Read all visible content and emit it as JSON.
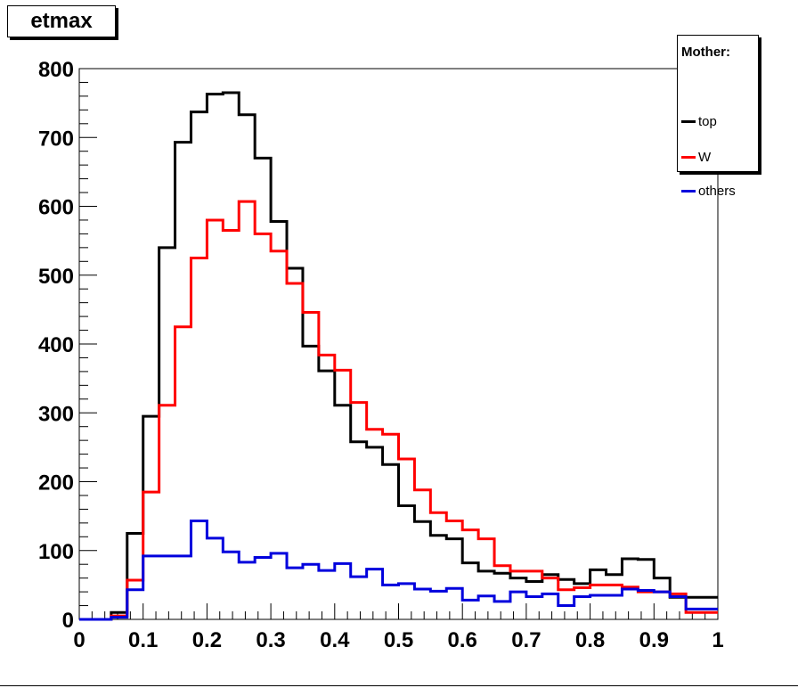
{
  "chart_data": {
    "type": "histogram",
    "title": "etmax",
    "xlabel": "",
    "ylabel": "",
    "xlim": [
      0,
      1
    ],
    "ylim": [
      0,
      800
    ],
    "bin_width": 0.025,
    "x_ticks": [
      0,
      0.1,
      0.2,
      0.3,
      0.4,
      0.5,
      0.6,
      0.7,
      0.8,
      0.9,
      1
    ],
    "x_tick_labels": [
      "0",
      "0.1",
      "0.2",
      "0.3",
      "0.4",
      "0.5",
      "0.6",
      "0.7",
      "0.8",
      "0.9",
      "1"
    ],
    "y_ticks": [
      0,
      100,
      200,
      300,
      400,
      500,
      600,
      700,
      800
    ],
    "y_tick_labels": [
      "0",
      "100",
      "200",
      "300",
      "400",
      "500",
      "600",
      "700",
      "800"
    ],
    "legend": {
      "header": "Mother:",
      "placement": "top-right"
    },
    "series": [
      {
        "name": "top",
        "color": "#000000",
        "values": [
          0,
          0,
          10,
          125,
          295,
          540,
          693,
          737,
          763,
          765,
          733,
          670,
          578,
          510,
          397,
          361,
          311,
          258,
          250,
          225,
          165,
          142,
          122,
          117,
          82,
          70,
          67,
          60,
          55,
          65,
          58,
          52,
          72,
          65,
          88,
          87,
          60,
          32,
          32,
          32
        ]
      },
      {
        "name": "W",
        "color": "#ff0000",
        "values": [
          0,
          0,
          5,
          57,
          185,
          311,
          425,
          525,
          580,
          565,
          607,
          560,
          535,
          488,
          446,
          384,
          362,
          315,
          276,
          269,
          233,
          188,
          155,
          143,
          130,
          117,
          78,
          70,
          70,
          60,
          43,
          46,
          50,
          50,
          47,
          40,
          40,
          37,
          10,
          10
        ]
      },
      {
        "name": "others",
        "color": "#0000dd",
        "values": [
          0,
          0,
          3,
          43,
          92,
          92,
          92,
          143,
          118,
          98,
          83,
          90,
          96,
          75,
          80,
          71,
          81,
          62,
          73,
          50,
          52,
          44,
          41,
          45,
          28,
          34,
          26,
          40,
          33,
          37,
          20,
          33,
          35,
          35,
          44,
          42,
          40,
          33,
          15,
          15
        ]
      }
    ]
  }
}
